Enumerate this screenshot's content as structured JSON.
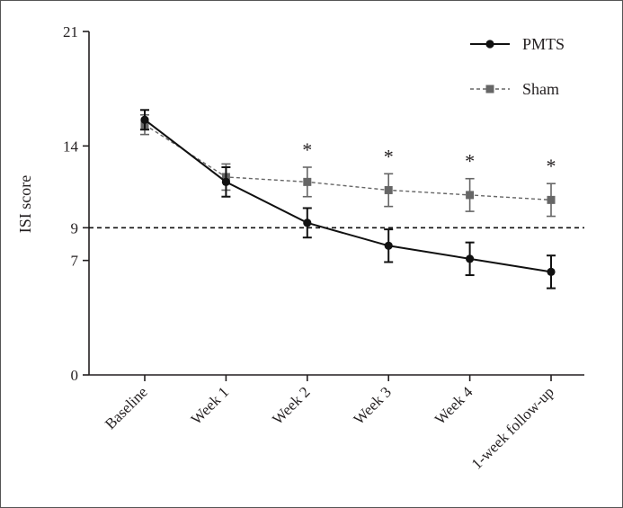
{
  "chart_data": {
    "type": "line",
    "title": "",
    "xlabel": "",
    "ylabel": "ISI score",
    "ylim": [
      0,
      21
    ],
    "y_ticks": [
      0,
      7,
      9,
      14,
      21
    ],
    "categories": [
      "Baseline",
      "Week 1",
      "Week 2",
      "Week 3",
      "Week 4",
      "1-week follow-up"
    ],
    "reference_line": {
      "value": 9,
      "style": "dashed"
    },
    "series": [
      {
        "name": "PMTS",
        "marker": "circle",
        "line_style": "solid",
        "color": "#111111",
        "values": [
          15.6,
          11.8,
          9.3,
          7.9,
          7.1,
          6.3
        ],
        "error": [
          0.6,
          0.9,
          0.9,
          1.0,
          1.0,
          1.0
        ]
      },
      {
        "name": "Sham",
        "marker": "square",
        "line_style": "dashed",
        "color": "#666666",
        "values": [
          15.3,
          12.1,
          11.8,
          11.3,
          11.0,
          10.7
        ],
        "error": [
          0.6,
          0.8,
          0.9,
          1.0,
          1.0,
          1.0
        ]
      }
    ],
    "significance": {
      "symbol": "*",
      "categories": [
        "Week 2",
        "Week 3",
        "Week 4",
        "1-week follow-up"
      ]
    },
    "legend_position": "top-right"
  }
}
